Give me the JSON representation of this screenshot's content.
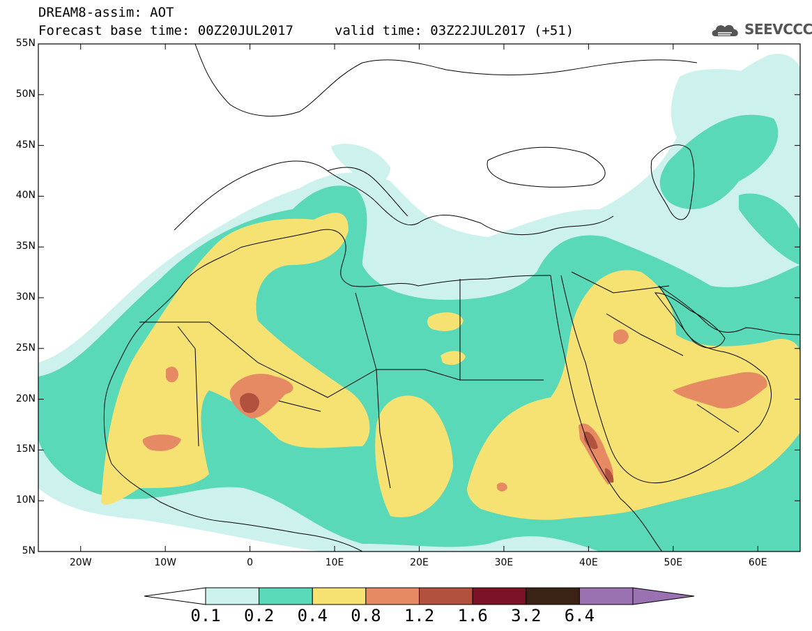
{
  "header": {
    "line1": "DREAM8-assim: AOT",
    "line2_left": "Forecast base time: 00Z20JUL2017",
    "line2_right": "valid time: 03Z22JUL2017 (+51)",
    "logo_text": "SEEVCCC"
  },
  "map": {
    "lat_labels": [
      "55N",
      "50N",
      "45N",
      "40N",
      "35N",
      "30N",
      "25N",
      "20N",
      "15N",
      "10N",
      "5N"
    ],
    "lon_labels": [
      "20W",
      "10W",
      "0",
      "10E",
      "20E",
      "30E",
      "40E",
      "50E",
      "60E"
    ],
    "lat_range": [
      5,
      55
    ],
    "lon_range": [
      -25,
      65
    ]
  },
  "colorbar": {
    "labels": [
      "0.1",
      "0.2",
      "0.4",
      "0.8",
      "1.2",
      "1.6",
      "3.2",
      "6.4"
    ],
    "colors": [
      "#cdf1ec",
      "#5ad9b9",
      "#f6e272",
      "#e58a63",
      "#b3513f",
      "#7c1226",
      "#3a2314",
      "#9b72b1"
    ],
    "under_color": "#ffffff"
  },
  "palette": {
    "c01": "#cdf1ec",
    "c02": "#5ad9b9",
    "c04": "#f6e272",
    "c08": "#e58a63",
    "c12": "#b3513f",
    "c16": "#7c1226"
  }
}
